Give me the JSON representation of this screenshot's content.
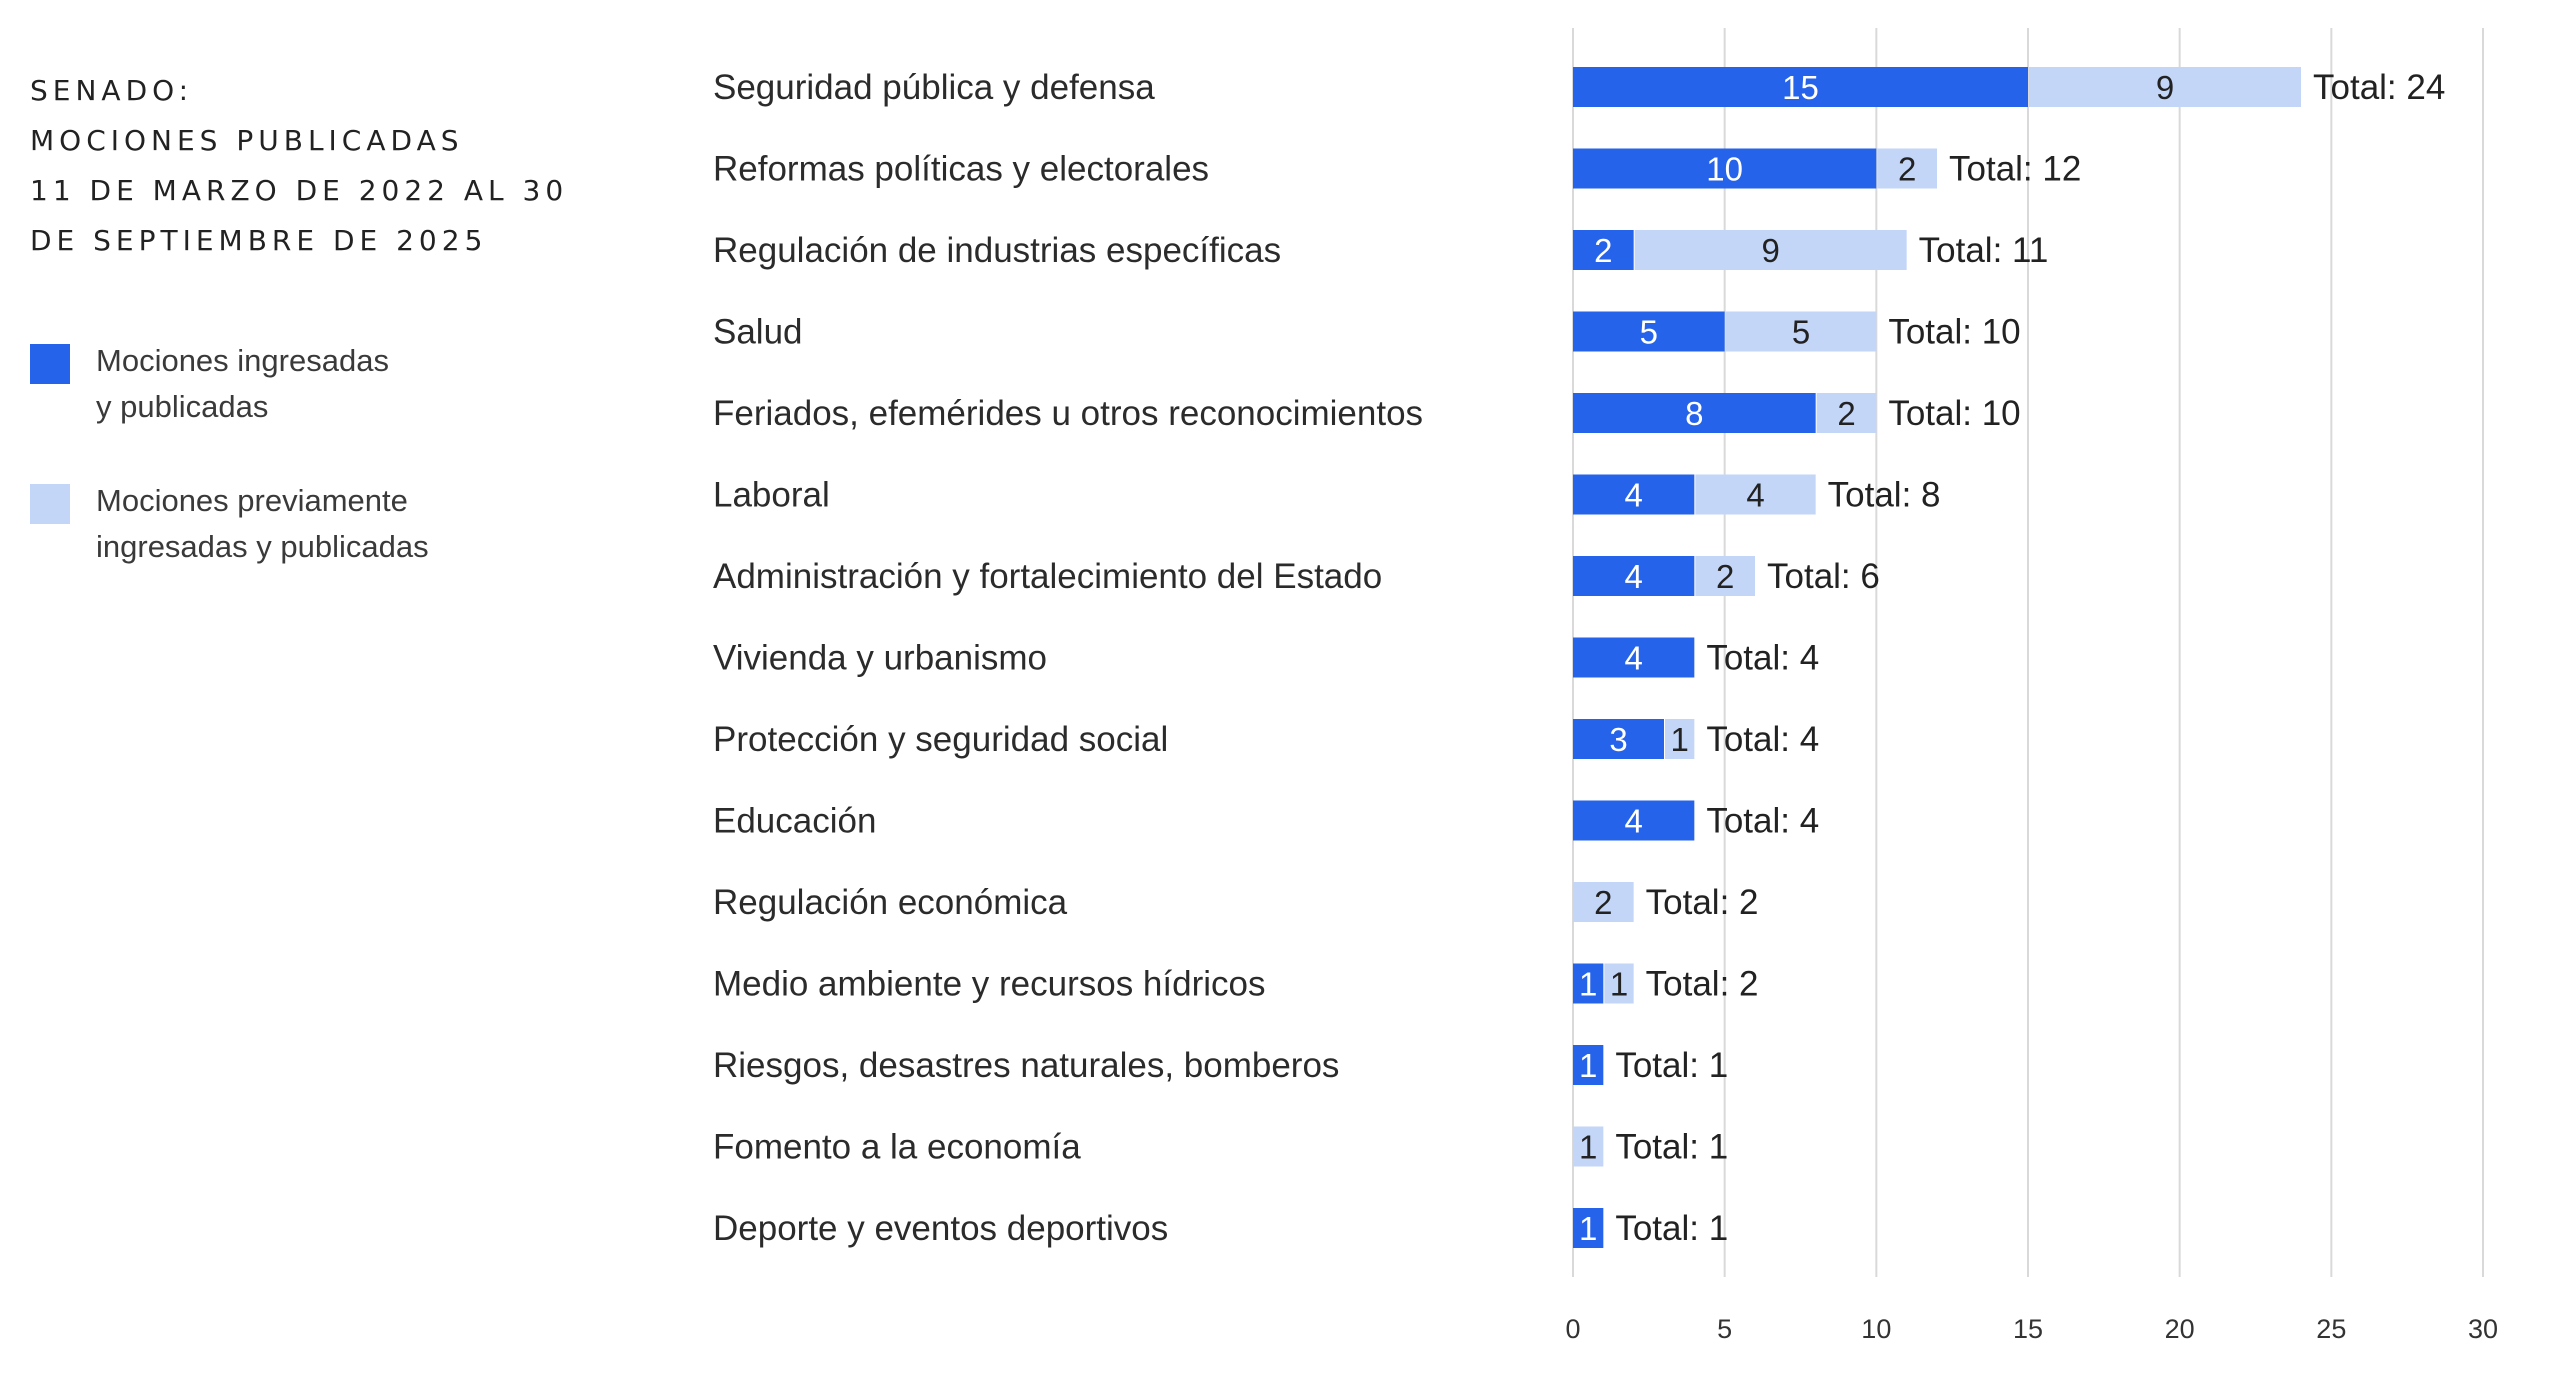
{
  "colors": {
    "primary": "#2563eb",
    "secondary": "#c3d6f7",
    "grid": "#d9d9d9",
    "text": "#2b2b2b"
  },
  "title_lines": [
    "SENADO:",
    "MOCIONES PUBLICADAS",
    "11 DE MARZO DE 2022 AL 30",
    "DE SEPTIEMBRE DE 2025"
  ],
  "legend": {
    "items": [
      {
        "lines": [
          "Mociones ingresadas",
          "y publicadas"
        ],
        "color": "#2563eb"
      },
      {
        "lines": [
          "Mociones previamente",
          "ingresadas y publicadas"
        ],
        "color": "#c3d6f7"
      }
    ]
  },
  "total_prefix": "Total: ",
  "chart_data": {
    "type": "bar",
    "orientation": "horizontal",
    "stacked": true,
    "title": "SENADO: MOCIONES PUBLICADAS 11 DE MARZO DE 2022 AL 30 DE SEPTIEMBRE DE 2025",
    "categories": [
      "Seguridad pública y defensa",
      "Reformas políticas y electorales",
      "Regulación de industrias específicas",
      "Salud",
      "Feriados, efemérides u otros reconocimientos",
      "Laboral",
      "Administración y fortalecimiento del Estado",
      "Vivienda y urbanismo",
      "Protección y seguridad social",
      "Educación",
      "Regulación económica",
      "Medio ambiente y recursos hídricos",
      "Riesgos, desastres naturales, bomberos",
      "Fomento a la economía",
      "Deporte y eventos deportivos"
    ],
    "series": [
      {
        "name": "Mociones ingresadas y publicadas",
        "values": [
          15,
          10,
          2,
          5,
          8,
          4,
          4,
          4,
          3,
          4,
          0,
          1,
          1,
          0,
          1
        ]
      },
      {
        "name": "Mociones previamente ingresadas y publicadas",
        "values": [
          9,
          2,
          9,
          5,
          2,
          4,
          2,
          0,
          1,
          0,
          2,
          1,
          0,
          1,
          0
        ]
      }
    ],
    "totals": [
      24,
      12,
      11,
      10,
      10,
      8,
      6,
      4,
      4,
      4,
      2,
      2,
      1,
      1,
      1
    ],
    "xlim": [
      0,
      30
    ],
    "xticks": [
      0,
      5,
      10,
      15,
      20,
      25,
      30
    ],
    "xlabel": "",
    "ylabel": "",
    "grid": true,
    "legend_position": "left"
  }
}
